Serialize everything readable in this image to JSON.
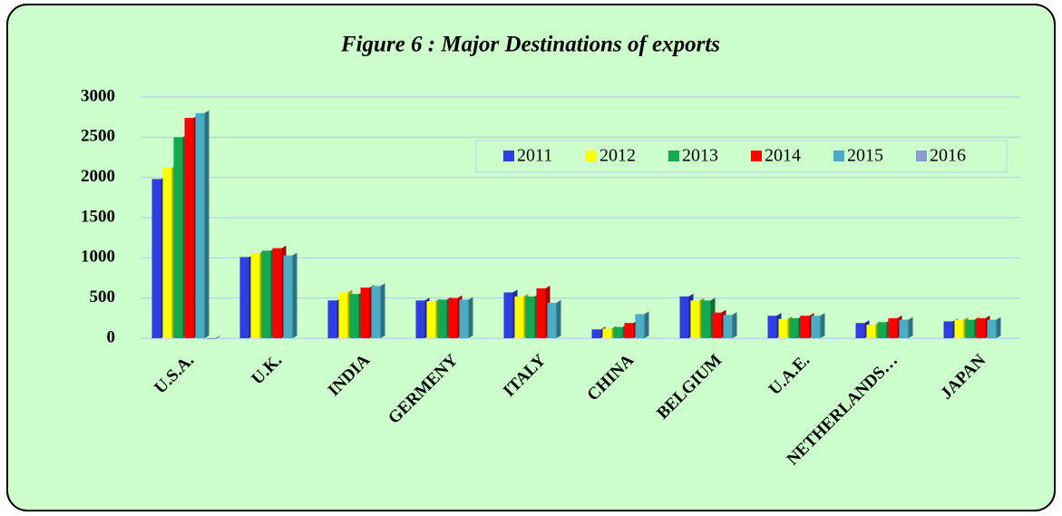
{
  "chart_data": {
    "type": "bar",
    "title": "Figure 6 : Major Destinations of exports",
    "categories": [
      "U.S.A.",
      "U.K.",
      "INDIA",
      "GERMENY",
      "ITALY",
      "CHINA",
      "BELGIUM",
      "U.A.E.",
      "NETHERLANDS…",
      "JAPAN"
    ],
    "series": [
      {
        "name": "2011",
        "color": "#2e3ee0",
        "values": [
          1980,
          1010,
          470,
          470,
          570,
          110,
          520,
          280,
          190,
          210
        ]
      },
      {
        "name": "2012",
        "color": "#ffff00",
        "values": [
          2120,
          1060,
          570,
          460,
          520,
          120,
          470,
          240,
          170,
          230
        ]
      },
      {
        "name": "2013",
        "color": "#14a850",
        "values": [
          2500,
          1090,
          550,
          480,
          520,
          140,
          470,
          250,
          200,
          230
        ]
      },
      {
        "name": "2014",
        "color": "#ff0000",
        "values": [
          2740,
          1120,
          630,
          500,
          620,
          190,
          320,
          280,
          250,
          250
        ]
      },
      {
        "name": "2015",
        "color": "#4bacc6",
        "values": [
          2800,
          1030,
          650,
          480,
          440,
          300,
          290,
          280,
          230,
          230
        ]
      },
      {
        "name": "2016",
        "color": "#8c9ad2",
        "values": [
          0,
          null,
          null,
          null,
          null,
          null,
          null,
          null,
          null,
          null
        ]
      }
    ],
    "ylim": [
      0,
      3000
    ],
    "yticks": [
      0,
      500,
      1000,
      1500,
      2000,
      2500,
      3000
    ],
    "grid": true,
    "legend": "top-right"
  }
}
